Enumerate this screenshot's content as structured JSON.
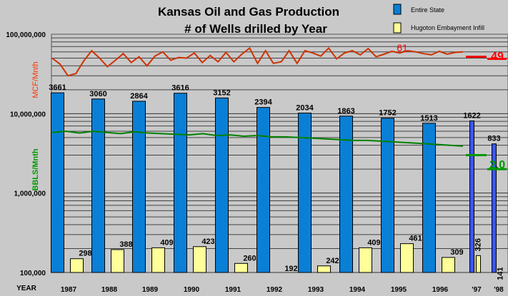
{
  "chart_data": {
    "type": "bar",
    "title": "Kansas Oil and Gas Production",
    "subtitle": "# of Wells drilled by Year",
    "xlabel": "YEAR",
    "yscale": "log",
    "ylim": [
      100000,
      100000000
    ],
    "ytick_labels": [
      "100,000",
      "1,000,000",
      "10,000,000",
      "100,000,000"
    ],
    "categories": [
      "1987",
      "1988",
      "1989",
      "1990",
      "1991",
      "1992",
      "1993",
      "1994",
      "1995",
      "1996",
      "'97",
      "'98"
    ],
    "series": [
      {
        "name": "Entire State",
        "values": [
          3661,
          3060,
          2864,
          3616,
          3152,
          2394,
          2034,
          1863,
          1752,
          1513,
          1622,
          833
        ],
        "labels": [
          "3661",
          "3060",
          "2864",
          "3616",
          "3152",
          "2394",
          "2034",
          "1863",
          "1752",
          "1513",
          "1622",
          "833"
        ]
      },
      {
        "name": "Hugoton Embayment Infill",
        "values": [
          298,
          388,
          409,
          423,
          260,
          192,
          242,
          409,
          461,
          309,
          326,
          141
        ],
        "labels": [
          "298",
          "388",
          "409",
          "423",
          "260",
          "192",
          "242",
          "409",
          "461",
          "309",
          "326",
          "141"
        ]
      }
    ],
    "gas_line": {
      "label": "MCF/Mnth",
      "annotations": [
        "61",
        "49"
      ],
      "values": [
        50000000,
        42000000,
        30000000,
        32000000,
        46000000,
        62000000,
        50000000,
        39000000,
        47000000,
        57000000,
        44000000,
        52000000,
        40000000,
        53000000,
        60000000,
        47000000,
        51000000,
        50000000,
        58000000,
        44000000,
        54000000,
        45000000,
        59000000,
        45000000,
        56000000,
        67000000,
        43000000,
        62000000,
        43000000,
        45000000,
        62000000,
        43000000,
        62000000,
        58000000,
        53000000,
        67000000,
        49000000,
        58000000,
        62000000,
        55000000,
        66000000,
        52000000,
        56000000,
        61000000,
        58000000,
        62000000,
        60000000,
        57000000,
        55000000,
        61000000,
        56000000,
        59000000,
        60000000
      ]
    },
    "oil_line": {
      "label": "BBLS/Mnth",
      "annotations": [
        "2.0"
      ],
      "values": [
        5800000,
        6000000,
        5700000,
        6000000,
        5800000,
        5600000,
        5900000,
        5700000,
        5600000,
        5500000,
        5400000,
        5600000,
        5300000,
        5400000,
        5200000,
        5300000,
        5100000,
        5100000,
        5000000,
        4900000,
        4800000,
        4700000,
        4600000,
        4600000,
        4500000,
        4400000,
        4300000,
        4200000,
        4100000,
        4000000,
        3900000
      ]
    },
    "colors": {
      "background": "#c9c9c9",
      "state_bar": "#0a7fd6",
      "state_bar_late": "#3a56f0",
      "infill_bar": "#ffff99",
      "gas_line": "#cc3300",
      "gas_marker": "#ff0000",
      "oil_line": "#008000",
      "oil_marker": "#009900"
    },
    "legend_position": "top-right",
    "grid": true
  }
}
